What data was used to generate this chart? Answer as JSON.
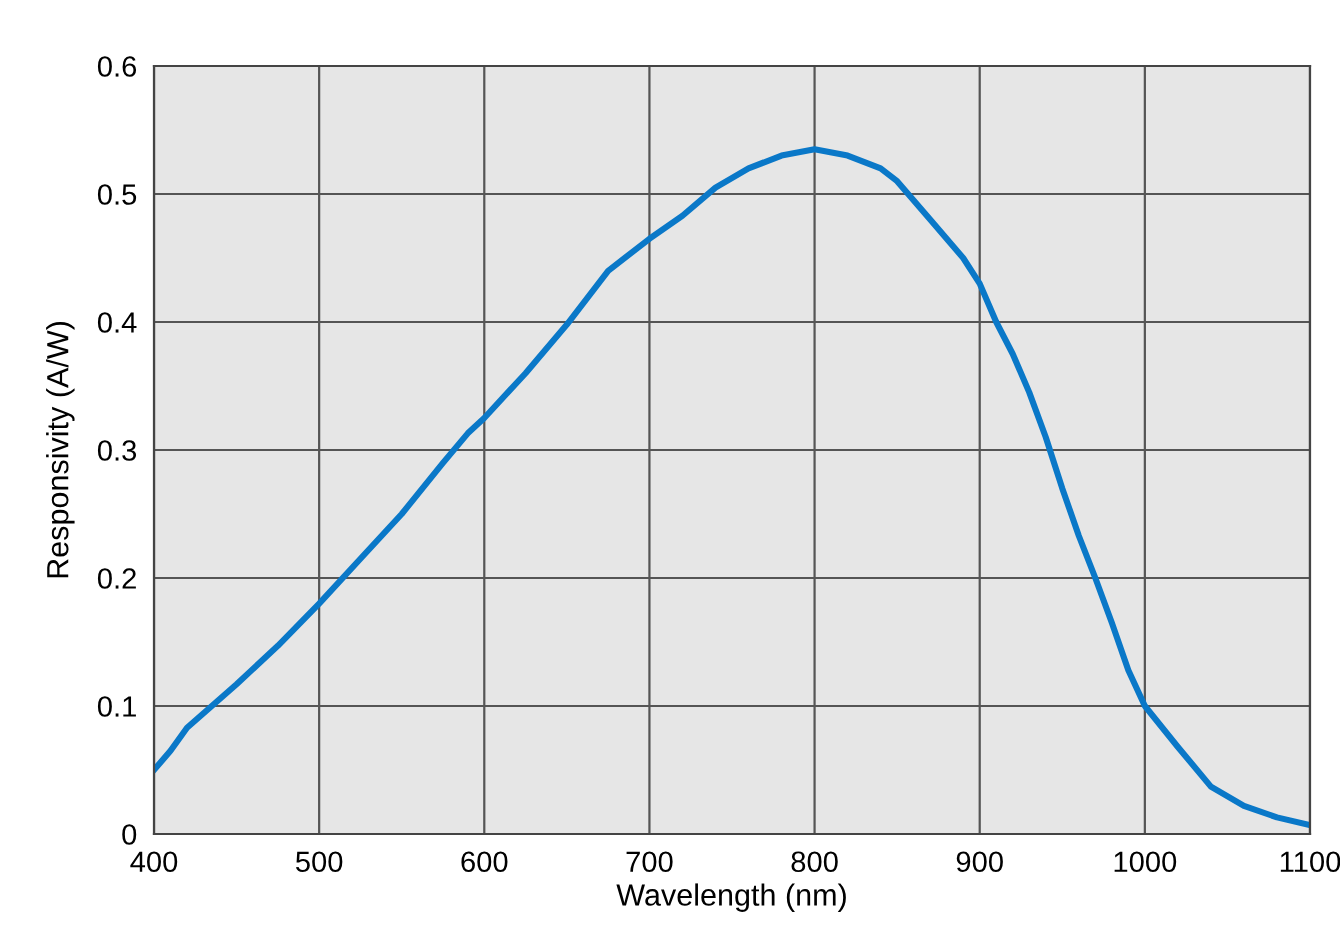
{
  "chart_data": {
    "type": "line",
    "xlabel": "Wavelength (nm)",
    "ylabel": "Responsivity (A/W)",
    "x": [
      400,
      410,
      420,
      435,
      450,
      475,
      500,
      525,
      550,
      575,
      590,
      600,
      625,
      650,
      675,
      690,
      700,
      720,
      740,
      760,
      780,
      800,
      820,
      840,
      850,
      870,
      890,
      900,
      910,
      920,
      930,
      940,
      950,
      960,
      970,
      980,
      990,
      1000,
      1020,
      1040,
      1060,
      1080,
      1100
    ],
    "series": [
      {
        "color": "#0a78c8",
        "values": [
          0.05,
          0.065,
          0.083,
          0.1,
          0.117,
          0.147,
          0.18,
          0.215,
          0.25,
          0.29,
          0.313,
          0.325,
          0.36,
          0.398,
          0.44,
          0.455,
          0.465,
          0.483,
          0.505,
          0.52,
          0.53,
          0.535,
          0.53,
          0.52,
          0.51,
          0.48,
          0.45,
          0.43,
          0.4,
          0.375,
          0.345,
          0.31,
          0.27,
          0.233,
          0.2,
          0.165,
          0.128,
          0.1,
          0.068,
          0.037,
          0.022,
          0.013,
          0.007
        ]
      }
    ],
    "xlim": [
      400,
      1100
    ],
    "ylim": [
      0,
      0.6
    ],
    "xticks": [
      400,
      500,
      600,
      700,
      800,
      900,
      1000,
      1100
    ],
    "yticks": [
      0,
      0.1,
      0.2,
      0.3,
      0.4,
      0.5,
      0.6
    ],
    "grid": true,
    "line_style": "solid",
    "marker": "none"
  }
}
